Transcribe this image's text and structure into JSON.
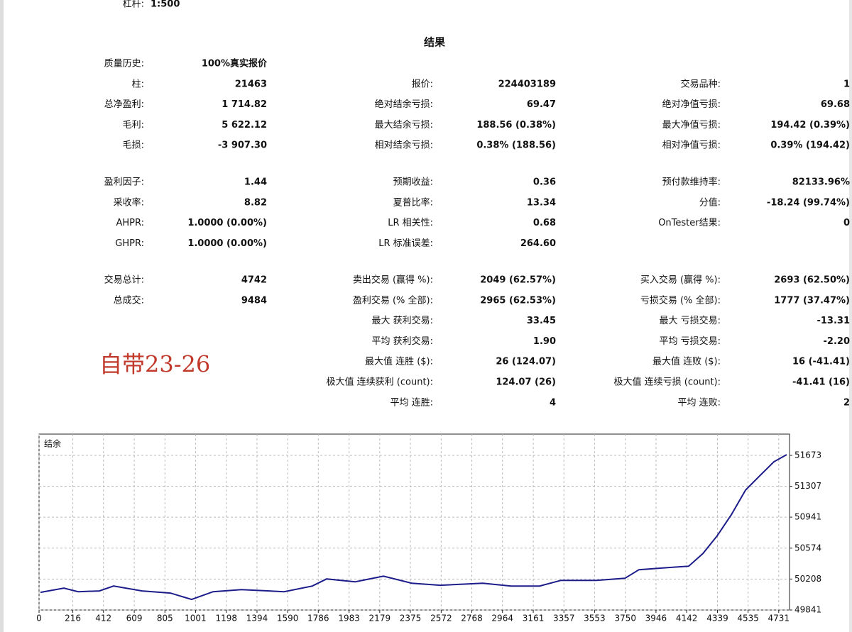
{
  "header": {
    "leverage_label": "杠杆:",
    "leverage_value": "1:500"
  },
  "report": {
    "title": "结果",
    "sections": [
      {
        "rows": [
          [
            {
              "label": "质量历史:",
              "value": "100%真实报价"
            },
            null,
            null
          ],
          [
            {
              "label": "柱:",
              "value": "21463"
            },
            {
              "label": "报价:",
              "value": "224403189"
            },
            {
              "label": "交易品种:",
              "value": "1"
            }
          ],
          [
            {
              "label": "总净盈利:",
              "value": "1 714.82"
            },
            {
              "label": "绝对结余亏损:",
              "value": "69.47"
            },
            {
              "label": "绝对净值亏损:",
              "value": "69.68"
            }
          ],
          [
            {
              "label": "毛利:",
              "value": "5 622.12"
            },
            {
              "label": "最大结余亏损:",
              "value": "188.56 (0.38%)"
            },
            {
              "label": "最大净值亏损:",
              "value": "194.42 (0.39%)"
            }
          ],
          [
            {
              "label": "毛损:",
              "value": "-3 907.30"
            },
            {
              "label": "相对结余亏损:",
              "value": "0.38% (188.56)"
            },
            {
              "label": "相对净值亏损:",
              "value": "0.39% (194.42)"
            }
          ]
        ]
      },
      {
        "rows": [
          [
            {
              "label": "盈利因子:",
              "value": "1.44"
            },
            {
              "label": "预期收益:",
              "value": "0.36"
            },
            {
              "label": "预付款维持率:",
              "value": "82133.96%"
            }
          ],
          [
            {
              "label": "采收率:",
              "value": "8.82"
            },
            {
              "label": "夏普比率:",
              "value": "13.34"
            },
            {
              "label": "分值:",
              "value": "-18.24 (99.74%)"
            }
          ],
          [
            {
              "label": "AHPR:",
              "value": "1.0000 (0.00%)"
            },
            {
              "label": "LR 相关性:",
              "value": "0.68"
            },
            {
              "label": "OnTester结果:",
              "value": "0"
            }
          ],
          [
            {
              "label": "GHPR:",
              "value": "1.0000 (0.00%)"
            },
            {
              "label": "LR 标准误差:",
              "value": "264.60"
            },
            null
          ]
        ]
      },
      {
        "rows": [
          [
            {
              "label": "交易总计:",
              "value": "4742"
            },
            {
              "label": "卖出交易 (赢得 %):",
              "value": "2049 (62.57%)"
            },
            {
              "label": "买入交易 (赢得 %):",
              "value": "2693 (62.50%)"
            }
          ],
          [
            {
              "label": "总成交:",
              "value": "9484"
            },
            {
              "label": "盈利交易 (% 全部):",
              "value": "2965 (62.53%)"
            },
            {
              "label": "亏损交易 (% 全部):",
              "value": "1777 (37.47%)"
            }
          ],
          [
            null,
            {
              "label": "最大 获利交易:",
              "value": "33.45"
            },
            {
              "label": "最大 亏损交易:",
              "value": "-13.31"
            }
          ],
          [
            null,
            {
              "label": "平均 获利交易:",
              "value": "1.90"
            },
            {
              "label": "平均 亏损交易:",
              "value": "-2.20"
            }
          ],
          [
            null,
            {
              "label": "最大值 连胜 ($):",
              "value": "26 (124.07)"
            },
            {
              "label": "最大值 连败 ($):",
              "value": "16 (-41.41)"
            }
          ],
          [
            null,
            {
              "label": "极大值 连续获利 (count):",
              "value": "124.07 (26)"
            },
            {
              "label": "极大值 连续亏损 (count):",
              "value": "-41.41 (16)"
            }
          ],
          [
            null,
            {
              "label": "平均 连胜:",
              "value": "4"
            },
            {
              "label": "平均 连败:",
              "value": "2"
            }
          ]
        ]
      }
    ]
  },
  "annotation": "自带23-26",
  "chart_data": {
    "type": "line",
    "title": "结余",
    "x": [
      9,
      159,
      250,
      386,
      477,
      659,
      840,
      976,
      1113,
      1294,
      1567,
      1748,
      1839,
      2021,
      2203,
      2384,
      2566,
      2838,
      3020,
      3202,
      3338,
      3565,
      3747,
      3837,
      4019,
      4155,
      4246,
      4337,
      4428,
      4519,
      4609,
      4700,
      4782
    ],
    "series": [
      {
        "name": "结余",
        "color": "#1c1c8a",
        "values": [
          50050,
          50100,
          50058,
          50067,
          50125,
          50067,
          50042,
          49966,
          50058,
          50083,
          50058,
          50125,
          50209,
          50175,
          50242,
          50159,
          50134,
          50159,
          50125,
          50125,
          50192,
          50192,
          50217,
          50318,
          50343,
          50360,
          50510,
          50719,
          50970,
          51262,
          51430,
          51597,
          51681
        ]
      }
    ],
    "xlim": [
      0,
      4800
    ],
    "ylim": [
      49841,
      51925
    ],
    "xticks": [
      0,
      216,
      412,
      609,
      805,
      1001,
      1198,
      1394,
      1590,
      1786,
      1983,
      2179,
      2375,
      2572,
      2768,
      2964,
      3161,
      3357,
      3553,
      3750,
      3946,
      4142,
      4339,
      4535,
      4731
    ],
    "yticks": [
      49841,
      50208,
      50574,
      50941,
      51307,
      51673
    ],
    "grid": true
  }
}
